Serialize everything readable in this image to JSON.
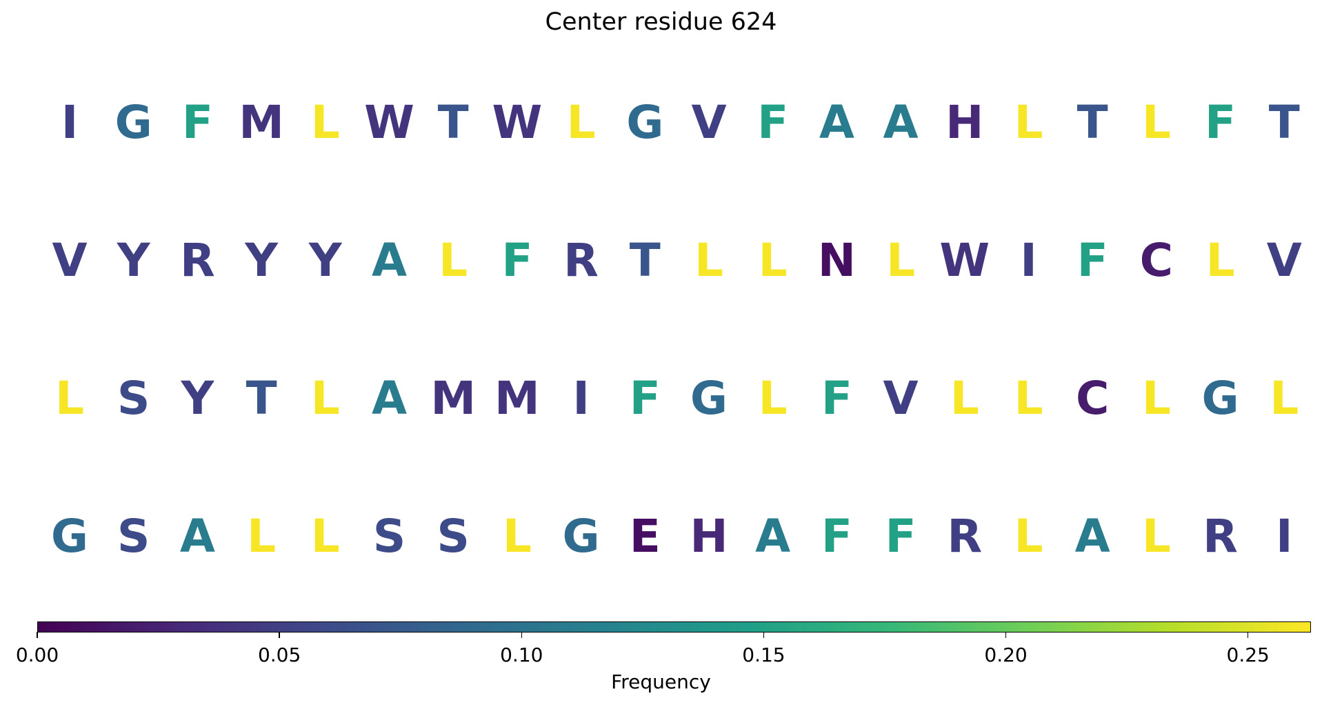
{
  "chart_data": {
    "type": "heatmap",
    "title": "Center residue 624",
    "rows": [
      [
        "I",
        "G",
        "F",
        "M",
        "L",
        "W",
        "T",
        "W",
        "L",
        "G",
        "V",
        "F",
        "A",
        "A",
        "H",
        "L",
        "T",
        "L",
        "F",
        "T"
      ],
      [
        "V",
        "Y",
        "R",
        "Y",
        "Y",
        "A",
        "L",
        "F",
        "R",
        "T",
        "L",
        "L",
        "N",
        "L",
        "W",
        "I",
        "F",
        "C",
        "L",
        "V"
      ],
      [
        "L",
        "S",
        "Y",
        "T",
        "L",
        "A",
        "M",
        "M",
        "I",
        "F",
        "G",
        "L",
        "F",
        "V",
        "L",
        "L",
        "C",
        "L",
        "G",
        "L"
      ],
      [
        "G",
        "S",
        "A",
        "L",
        "L",
        "S",
        "S",
        "L",
        "G",
        "E",
        "H",
        "A",
        "F",
        "F",
        "R",
        "L",
        "A",
        "L",
        "R",
        "I"
      ]
    ],
    "frequencies": {
      "L": 0.26,
      "F": 0.15,
      "A": 0.11,
      "G": 0.09,
      "T": 0.07,
      "S": 0.06,
      "I": 0.05,
      "R": 0.05,
      "V": 0.05,
      "Y": 0.05,
      "W": 0.04,
      "M": 0.04,
      "H": 0.03,
      "C": 0.02,
      "N": 0.01,
      "E": 0.01
    },
    "colorbar": {
      "label": "Frequency",
      "range": [
        0,
        0.263
      ],
      "ticks": [
        "0.00",
        "0.05",
        "0.10",
        "0.15",
        "0.20",
        "0.25"
      ],
      "tick_values": [
        0,
        0.05,
        0.1,
        0.15,
        0.2,
        0.25
      ],
      "colormap": "viridis",
      "stops": [
        "#440154",
        "#482878",
        "#3e4989",
        "#31688e",
        "#26828e",
        "#1f9e89",
        "#35b779",
        "#6ece58",
        "#b5de2b",
        "#fde725"
      ]
    }
  }
}
